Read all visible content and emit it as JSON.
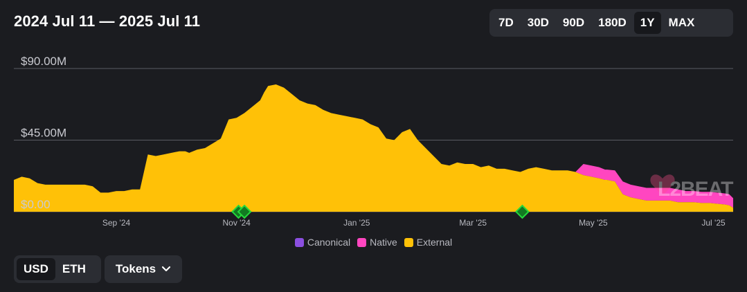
{
  "header": {
    "title": "2024 Jul 11 — 2025 Jul 11"
  },
  "range_selector": {
    "options": [
      "7D",
      "30D",
      "90D",
      "180D",
      "1Y",
      "MAX"
    ],
    "active": "1Y"
  },
  "currency_toggle": {
    "options": [
      "USD",
      "ETH"
    ],
    "active": "USD"
  },
  "tokens_button": {
    "label": "Tokens"
  },
  "watermark": {
    "text": "L2BEAT"
  },
  "colors": {
    "canonical": "#8b4fe0",
    "native": "#ff46c0",
    "external": "#ffc107",
    "background": "#1b1c20",
    "milestone": "#25d93b"
  },
  "chart_data": {
    "type": "area",
    "stacked": true,
    "x_start": "2024-07-11",
    "x_end": "2025-07-11",
    "yticks": [
      "$0.00",
      "$45.00M",
      "$90.00M"
    ],
    "ylim": [
      0,
      90
    ],
    "y_unit": "USD millions",
    "xticks": [
      "Sep '24",
      "Nov '24",
      "Jan '25",
      "Mar '25",
      "May '25",
      "Jul '25"
    ],
    "xtick_dates": [
      "2024-09-01",
      "2024-11-01",
      "2025-01-01",
      "2025-03-01",
      "2025-05-01",
      "2025-07-01"
    ],
    "legend": [
      "Canonical",
      "Native",
      "External"
    ],
    "legend_position": "bottom",
    "grid": true,
    "x": [
      "2024-07-11",
      "2024-07-15",
      "2024-07-19",
      "2024-07-23",
      "2024-07-27",
      "2024-07-31",
      "2024-08-04",
      "2024-08-08",
      "2024-08-12",
      "2024-08-16",
      "2024-08-20",
      "2024-08-24",
      "2024-08-28",
      "2024-09-01",
      "2024-09-05",
      "2024-09-09",
      "2024-09-13",
      "2024-09-17",
      "2024-09-21",
      "2024-09-25",
      "2024-09-29",
      "2024-10-03",
      "2024-10-06",
      "2024-10-08",
      "2024-10-12",
      "2024-10-16",
      "2024-10-20",
      "2024-10-24",
      "2024-10-28",
      "2024-11-01",
      "2024-11-05",
      "2024-11-09",
      "2024-11-13",
      "2024-11-15",
      "2024-11-17",
      "2024-11-21",
      "2024-11-25",
      "2024-11-29",
      "2024-12-03",
      "2024-12-07",
      "2024-12-11",
      "2024-12-15",
      "2024-12-19",
      "2024-12-23",
      "2024-12-27",
      "2024-12-31",
      "2025-01-04",
      "2025-01-08",
      "2025-01-12",
      "2025-01-16",
      "2025-01-20",
      "2025-01-24",
      "2025-01-28",
      "2025-02-01",
      "2025-02-05",
      "2025-02-09",
      "2025-02-13",
      "2025-02-17",
      "2025-02-21",
      "2025-02-25",
      "2025-03-01",
      "2025-03-05",
      "2025-03-09",
      "2025-03-13",
      "2025-03-17",
      "2025-03-21",
      "2025-03-25",
      "2025-03-29",
      "2025-04-02",
      "2025-04-06",
      "2025-04-10",
      "2025-04-14",
      "2025-04-18",
      "2025-04-22",
      "2025-04-26",
      "2025-04-30",
      "2025-05-04",
      "2025-05-07",
      "2025-05-08",
      "2025-05-12",
      "2025-05-16",
      "2025-05-20",
      "2025-05-24",
      "2025-05-28",
      "2025-06-01",
      "2025-06-05",
      "2025-06-09",
      "2025-06-13",
      "2025-06-17",
      "2025-06-21",
      "2025-06-25",
      "2025-06-29",
      "2025-07-03",
      "2025-07-07",
      "2025-07-09",
      "2025-07-11"
    ],
    "series": [
      {
        "name": "Canonical",
        "values": [
          0,
          0,
          0,
          0,
          0,
          0,
          0,
          0,
          0,
          0,
          0,
          0,
          0,
          0,
          0,
          0,
          0,
          0,
          0,
          0,
          0,
          0,
          0,
          0,
          0,
          0,
          0,
          0,
          0,
          0,
          0,
          0,
          0,
          0,
          0,
          0,
          0,
          0,
          0,
          0,
          0,
          0,
          0,
          0,
          0,
          0,
          0,
          0,
          0,
          0,
          0,
          0,
          0,
          0,
          0,
          0,
          0,
          0,
          0,
          0,
          0,
          0,
          0,
          0,
          0,
          0,
          0,
          0,
          0,
          0,
          0,
          0,
          0,
          0,
          0,
          0,
          0,
          0,
          0,
          0,
          0,
          0,
          0,
          0,
          0,
          0,
          0,
          0,
          0,
          0,
          0,
          0,
          0,
          0,
          0,
          0
        ]
      },
      {
        "name": "Native",
        "values": [
          0,
          0,
          0,
          0,
          0,
          0,
          0,
          0,
          0,
          0,
          0,
          0,
          0,
          0,
          0,
          0,
          0,
          0,
          0,
          0,
          0,
          0,
          0,
          0,
          0,
          0,
          0,
          0,
          0,
          0,
          0,
          0,
          0,
          0,
          0,
          0,
          0,
          0,
          0,
          0,
          0,
          0,
          0,
          0,
          0,
          0,
          0,
          0,
          0,
          0,
          0,
          0,
          0,
          0,
          0,
          0,
          0,
          0,
          0,
          0,
          0,
          0,
          0,
          0,
          0,
          0,
          0,
          0,
          0,
          0,
          0,
          0,
          0,
          0,
          7,
          7,
          7,
          6.5,
          6.5,
          7,
          8,
          8,
          8,
          8,
          8,
          8,
          8,
          8,
          7,
          7,
          7,
          7,
          7,
          7,
          7,
          6
        ]
      },
      {
        "name": "External",
        "values": [
          20,
          22,
          21,
          18,
          17,
          17,
          17,
          17,
          17,
          17,
          16,
          12,
          12,
          13,
          13,
          14,
          14,
          36,
          35,
          36,
          37,
          38,
          38,
          37,
          39,
          40,
          43,
          46,
          58,
          59,
          62,
          66,
          70,
          75,
          79,
          80,
          78,
          74,
          70,
          68,
          67,
          64,
          62,
          61,
          60,
          59,
          58,
          55,
          53,
          46,
          45,
          50,
          52,
          45,
          40,
          35,
          30,
          29,
          31,
          30,
          30,
          28,
          29,
          27,
          27,
          26,
          25,
          27,
          28,
          27,
          26,
          26,
          26,
          25,
          23,
          22,
          21,
          20,
          20,
          19,
          11,
          9,
          8,
          7,
          7,
          7,
          7,
          6,
          6,
          6,
          5.5,
          5.5,
          5,
          4.5,
          4,
          2.5
        ]
      }
    ],
    "milestones": [
      "2024-11-02",
      "2024-11-05",
      "2025-03-26"
    ]
  }
}
